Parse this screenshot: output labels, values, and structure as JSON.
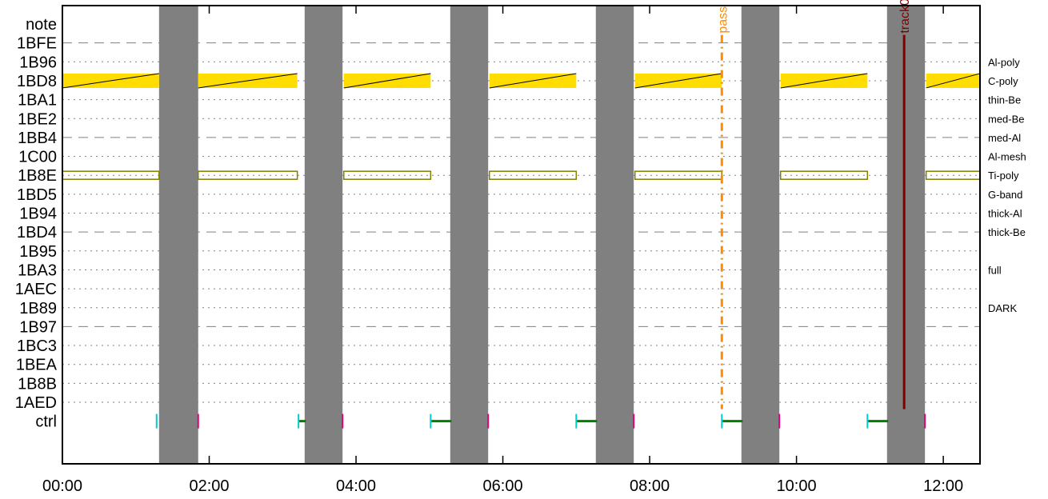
{
  "chart_data": {
    "type": "timeline",
    "title": "",
    "xlabel": "",
    "ylabel": "",
    "x_unit": "minutes",
    "xlim": [
      0,
      750
    ],
    "x_ticks": [
      {
        "value": 0,
        "label": "00:00"
      },
      {
        "value": 120,
        "label": "02:00"
      },
      {
        "value": 240,
        "label": "04:00"
      },
      {
        "value": 360,
        "label": "06:00"
      },
      {
        "value": 480,
        "label": "08:00"
      },
      {
        "value": 600,
        "label": "10:00"
      },
      {
        "value": 720,
        "label": "12:00"
      }
    ],
    "rows": [
      {
        "id": "note",
        "label": "note",
        "right_label": "",
        "grid": "none"
      },
      {
        "id": "1BFE",
        "label": "1BFE",
        "right_label": "",
        "grid": "dashed"
      },
      {
        "id": "1B96",
        "label": "1B96",
        "right_label": "Al-poly",
        "grid": "dotted"
      },
      {
        "id": "1BD8",
        "label": "1BD8",
        "right_label": "C-poly",
        "grid": "dotted"
      },
      {
        "id": "1BA1",
        "label": "1BA1",
        "right_label": "thin-Be",
        "grid": "dotted"
      },
      {
        "id": "1BE2",
        "label": "1BE2",
        "right_label": "med-Be",
        "grid": "dotted"
      },
      {
        "id": "1BB4",
        "label": "1BB4",
        "right_label": "med-Al",
        "grid": "dashed"
      },
      {
        "id": "1C00",
        "label": "1C00",
        "right_label": "Al-mesh",
        "grid": "dotted"
      },
      {
        "id": "1B8E",
        "label": "1B8E",
        "right_label": "Ti-poly",
        "grid": "dotted"
      },
      {
        "id": "1BD5",
        "label": "1BD5",
        "right_label": "G-band",
        "grid": "dotted"
      },
      {
        "id": "1B94",
        "label": "1B94",
        "right_label": "thick-Al",
        "grid": "dotted"
      },
      {
        "id": "1BD4",
        "label": "1BD4",
        "right_label": "thick-Be",
        "grid": "dashed"
      },
      {
        "id": "1B95",
        "label": "1B95",
        "right_label": "",
        "grid": "dotted"
      },
      {
        "id": "1BA3",
        "label": "1BA3",
        "right_label": "full",
        "grid": "dotted"
      },
      {
        "id": "1AEC",
        "label": "1AEC",
        "right_label": "",
        "grid": "dotted"
      },
      {
        "id": "1B89",
        "label": "1B89",
        "right_label": "DARK",
        "grid": "dotted"
      },
      {
        "id": "1B97",
        "label": "1B97",
        "right_label": "",
        "grid": "dashed"
      },
      {
        "id": "1BC3",
        "label": "1BC3",
        "right_label": "",
        "grid": "dotted"
      },
      {
        "id": "1BEA",
        "label": "1BEA",
        "right_label": "",
        "grid": "dotted"
      },
      {
        "id": "1B8B",
        "label": "1B8B",
        "right_label": "",
        "grid": "dotted"
      },
      {
        "id": "1AED",
        "label": "1AED",
        "right_label": "",
        "grid": "dotted"
      },
      {
        "id": "ctrl",
        "label": "ctrl",
        "right_label": "",
        "grid": "none"
      }
    ],
    "gaps": [
      {
        "start": 79,
        "end": 111
      },
      {
        "start": 198,
        "end": 229
      },
      {
        "start": 317,
        "end": 348
      },
      {
        "start": 436,
        "end": 467
      },
      {
        "start": 555,
        "end": 586
      },
      {
        "start": 674,
        "end": 705
      }
    ],
    "filled_row": "1BD8",
    "filled_color": "#ffdd00",
    "filled_intervals": [
      {
        "start": 0,
        "end": 79
      },
      {
        "start": 111,
        "end": 192
      },
      {
        "start": 230,
        "end": 301
      },
      {
        "start": 349,
        "end": 420
      },
      {
        "start": 468,
        "end": 539
      },
      {
        "start": 587,
        "end": 658
      },
      {
        "start": 706,
        "end": 777
      },
      {
        "start": 825,
        "end": 890
      }
    ],
    "outlined_row": "1B8E",
    "outlined_color": "#808000",
    "outlined_intervals": [
      {
        "start": 0,
        "end": 79
      },
      {
        "start": 111,
        "end": 192
      },
      {
        "start": 230,
        "end": 301
      },
      {
        "start": 349,
        "end": 420
      },
      {
        "start": 468,
        "end": 539
      },
      {
        "start": 587,
        "end": 658
      },
      {
        "start": 706,
        "end": 777
      },
      {
        "start": 825,
        "end": 890
      }
    ],
    "ctrl_segments": [
      {
        "start": 193,
        "end": 199,
        "color": "#008000"
      },
      {
        "start": 301,
        "end": 318,
        "color": "#008000"
      },
      {
        "start": 420,
        "end": 437,
        "color": "#008000"
      },
      {
        "start": 539,
        "end": 556,
        "color": "#008000"
      },
      {
        "start": 658,
        "end": 675,
        "color": "#008000"
      }
    ],
    "ctrl_start_ticks": [
      77,
      193,
      301,
      420,
      539,
      658
    ],
    "ctrl_start_color": "#00cccc",
    "ctrl_end_ticks": [
      111,
      229,
      348,
      467,
      586,
      705
    ],
    "ctrl_end_color": "#e0007a",
    "markers": [
      {
        "label": "pass",
        "x": 539,
        "color": "#ff8c00",
        "style": "dashdot"
      },
      {
        "label": "track0",
        "x": 688,
        "color": "#800000",
        "style": "solid"
      }
    ],
    "colors": {
      "gap": "#808080",
      "grid": "#808080"
    }
  }
}
